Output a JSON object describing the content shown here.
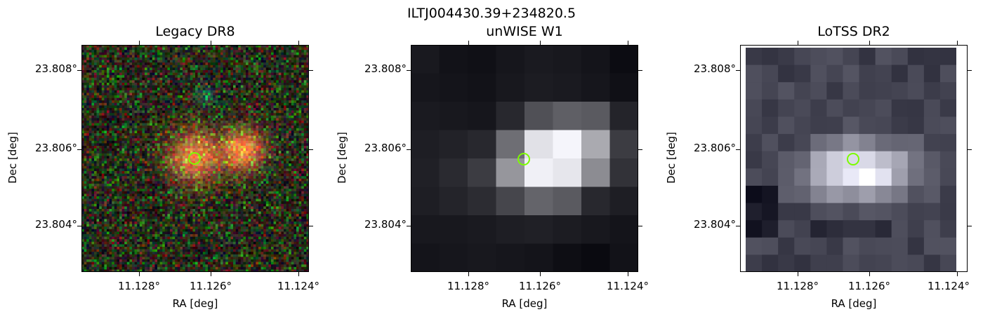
{
  "figure": {
    "suptitle": "ILTJ004430.39+234820.5",
    "marker_color": "#7CFC00"
  },
  "panels": [
    {
      "title": "Legacy DR8",
      "xlabel": "RA [deg]",
      "ylabel": "Dec [deg]",
      "xticks": [
        "11.128°",
        "11.126°",
        "11.124°"
      ],
      "yticks": [
        "23.808°",
        "23.806°",
        "23.804°"
      ]
    },
    {
      "title": "unWISE W1",
      "xlabel": "RA [deg]",
      "ylabel": "Dec [deg]",
      "xticks": [
        "11.128°",
        "11.126°",
        "11.124°"
      ],
      "yticks": [
        "23.808°",
        "23.806°",
        "23.804°"
      ]
    },
    {
      "title": "LoTSS DR2",
      "xlabel": "RA [deg]",
      "ylabel": "Dec [deg]",
      "xticks": [
        "11.128°",
        "11.126°",
        "11.124°"
      ],
      "yticks": [
        "23.808°",
        "23.806°",
        "23.804°"
      ]
    }
  ]
}
